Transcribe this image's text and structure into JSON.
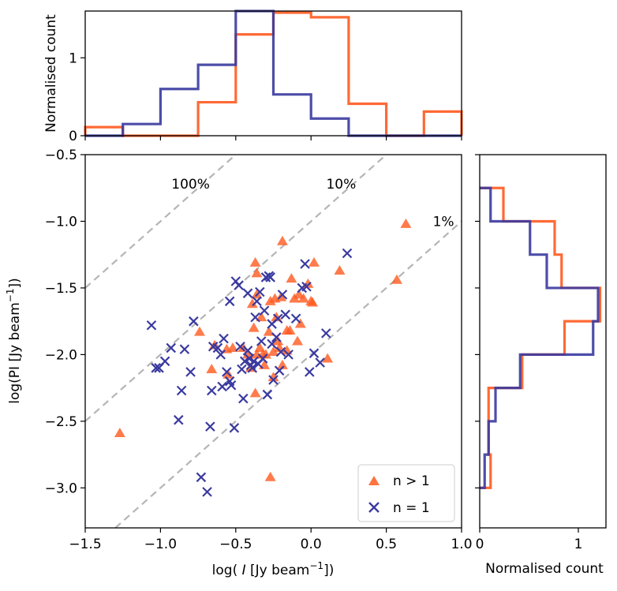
{
  "chart_data": {
    "type": "scatter",
    "colors": {
      "multi": "#FF5A1F",
      "single": "#3A3AA0",
      "ref_lines": "#b5b5b5"
    },
    "main": {
      "xlabel_prefix": "log( ",
      "xlabel_italic": "I",
      "xlabel_unit": " [Jy beam",
      "xlabel_sup": "−1",
      "xlabel_close": "])",
      "ylabel_prefix": "log(PI [Jy beam",
      "ylabel_sup": "−1",
      "ylabel_close": "])",
      "xlim": [
        -1.5,
        1.0
      ],
      "ylim": [
        -3.3,
        -0.5
      ],
      "xticks": [
        -1.5,
        -1.0,
        -0.5,
        0.0,
        0.5,
        1.0
      ],
      "xtick_labels": [
        "−1.5",
        "−1.0",
        "−0.5",
        "0.0",
        "0.5",
        "1.0"
      ],
      "yticks": [
        -3.0,
        -2.5,
        -2.0,
        -1.5,
        -1.0,
        -0.5
      ],
      "ytick_labels": [
        "−3.0",
        "−2.5",
        "−2.0",
        "−1.5",
        "−1.0",
        "−0.5"
      ],
      "ref_lines": [
        {
          "offset": 0,
          "label": "100%"
        },
        {
          "offset": -1,
          "label": "10%"
        },
        {
          "offset": -2,
          "label": "1%"
        }
      ],
      "series": [
        {
          "name": "n > 1",
          "marker": "triangle",
          "color": "#FF5A1F",
          "points": [
            [
              -1.27,
              -2.59
            ],
            [
              0.63,
              -1.02
            ],
            [
              0.57,
              -1.44
            ],
            [
              0.19,
              -1.37
            ],
            [
              0.11,
              -2.03
            ],
            [
              -0.19,
              -1.15
            ],
            [
              -0.27,
              -2.92
            ],
            [
              -0.37,
              -1.31
            ],
            [
              -0.36,
              -1.39
            ],
            [
              -0.36,
              -1.55
            ],
            [
              -0.37,
              -2.29
            ],
            [
              -0.33,
              -1.72
            ],
            [
              -0.27,
              -1.6
            ],
            [
              -0.24,
              -1.58
            ],
            [
              -0.23,
              -1.72
            ],
            [
              -0.22,
              -1.9
            ],
            [
              -0.21,
              -1.95
            ],
            [
              -0.2,
              -1.57
            ],
            [
              -0.19,
              -2.08
            ],
            [
              -0.16,
              -1.82
            ],
            [
              -0.14,
              -1.82
            ],
            [
              -0.13,
              -1.43
            ],
            [
              -0.11,
              -1.58
            ],
            [
              -0.08,
              -1.55
            ],
            [
              -0.05,
              -1.58
            ],
            [
              -0.02,
              -1.47
            ],
            [
              0.0,
              -1.6
            ],
            [
              0.01,
              -1.61
            ],
            [
              0.02,
              -1.31
            ],
            [
              -0.07,
              -1.77
            ],
            [
              -0.09,
              -1.9
            ],
            [
              -0.25,
              -1.98
            ],
            [
              -0.28,
              -1.83
            ],
            [
              -0.3,
              -2.0
            ],
            [
              -0.32,
              -2.0
            ],
            [
              -0.34,
              -1.95
            ],
            [
              -0.36,
              -2.0
            ],
            [
              -0.38,
              -1.8
            ],
            [
              -0.4,
              -2.1
            ],
            [
              -0.42,
              -2.0
            ],
            [
              -0.45,
              -1.95
            ],
            [
              -0.52,
              -1.95
            ],
            [
              -0.56,
              -1.96
            ],
            [
              -0.55,
              -2.15
            ],
            [
              -0.64,
              -1.93
            ],
            [
              -0.66,
              -2.11
            ],
            [
              -0.74,
              -1.83
            ],
            [
              -0.25,
              -2.17
            ],
            [
              -0.39,
              -1.62
            ],
            [
              -0.31,
              -2.08
            ],
            [
              -0.16,
              -1.97
            ]
          ]
        },
        {
          "name": "n = 1",
          "marker": "x",
          "color": "#3A3AA0",
          "points": [
            [
              -1.06,
              -1.78
            ],
            [
              -1.03,
              -2.1
            ],
            [
              -1.01,
              -2.1
            ],
            [
              -0.97,
              -2.05
            ],
            [
              -0.93,
              -1.95
            ],
            [
              -0.86,
              -2.27
            ],
            [
              -0.84,
              -1.96
            ],
            [
              -0.8,
              -2.13
            ],
            [
              -0.78,
              -1.75
            ],
            [
              -0.73,
              -2.92
            ],
            [
              -0.69,
              -3.03
            ],
            [
              -0.88,
              -2.49
            ],
            [
              -0.67,
              -2.54
            ],
            [
              -0.66,
              -2.27
            ],
            [
              -0.65,
              -1.94
            ],
            [
              -0.62,
              -1.95
            ],
            [
              -0.6,
              -2.0
            ],
            [
              -0.58,
              -1.88
            ],
            [
              -0.56,
              -2.13
            ],
            [
              -0.54,
              -1.6
            ],
            [
              -0.54,
              -2.2
            ],
            [
              -0.53,
              -2.23
            ],
            [
              -0.51,
              -2.55
            ],
            [
              -0.5,
              -1.45
            ],
            [
              -0.48,
              -1.48
            ],
            [
              -0.47,
              -1.94
            ],
            [
              -0.46,
              -2.11
            ],
            [
              -0.45,
              -2.33
            ],
            [
              -0.42,
              -1.97
            ],
            [
              -0.42,
              -1.54
            ],
            [
              -0.41,
              -2.03
            ],
            [
              -0.4,
              -2.08
            ],
            [
              -0.39,
              -2.1
            ],
            [
              -0.38,
              -2.05
            ],
            [
              -0.37,
              -1.72
            ],
            [
              -0.36,
              -1.6
            ],
            [
              -0.35,
              -2.07
            ],
            [
              -0.34,
              -1.53
            ],
            [
              -0.33,
              -1.9
            ],
            [
              -0.32,
              -2.03
            ],
            [
              -0.31,
              -1.67
            ],
            [
              -0.3,
              -1.42
            ],
            [
              -0.29,
              -2.3
            ],
            [
              -0.28,
              -1.41
            ],
            [
              -0.27,
              -1.42
            ],
            [
              -0.26,
              -1.77
            ],
            [
              -0.25,
              -2.19
            ],
            [
              -0.23,
              -1.87
            ],
            [
              -0.22,
              -1.73
            ],
            [
              -0.21,
              -2.12
            ],
            [
              -0.2,
              -1.98
            ],
            [
              -0.19,
              -1.55
            ],
            [
              -0.17,
              -1.7
            ],
            [
              -0.15,
              -2.0
            ],
            [
              -0.1,
              -1.73
            ],
            [
              -0.06,
              -1.5
            ],
            [
              -0.04,
              -1.32
            ],
            [
              -0.03,
              -1.49
            ],
            [
              -0.01,
              -2.13
            ],
            [
              0.02,
              -1.99
            ],
            [
              0.06,
              -2.06
            ],
            [
              0.1,
              -1.84
            ],
            [
              0.24,
              -1.24
            ],
            [
              -0.26,
              -1.92
            ],
            [
              -0.44,
              -2.05
            ],
            [
              -0.59,
              -2.24
            ]
          ]
        }
      ],
      "legend": [
        {
          "label": "n > 1",
          "marker": "triangle"
        },
        {
          "label": "n = 1",
          "marker": "x"
        }
      ],
      "legend_position": "lower-right"
    },
    "top_hist": {
      "ylabel": "Normalised count",
      "xlim": [
        -1.5,
        1.0
      ],
      "ylim": [
        0,
        1.6
      ],
      "yticks": [
        0,
        1
      ],
      "ytick_labels": [
        "0",
        "1"
      ],
      "bin_edges": [
        -1.5,
        -1.25,
        -1.0,
        -0.75,
        -0.5,
        -0.25,
        0.0,
        0.25,
        0.5,
        0.75,
        1.0
      ],
      "series": [
        {
          "name": "n > 1",
          "color": "#FF5A1F",
          "counts": [
            0.11,
            0.0,
            0.0,
            0.43,
            1.3,
            1.58,
            1.52,
            0.41,
            0.0,
            0.31
          ]
        },
        {
          "name": "n = 1",
          "color": "#3A3AA0",
          "counts": [
            0.0,
            0.15,
            0.6,
            0.91,
            1.6,
            0.53,
            0.22,
            0.0,
            0.0,
            0.0
          ]
        }
      ]
    },
    "right_hist": {
      "xlabel": "Normalised count",
      "xlim": [
        0,
        1.28
      ],
      "ylim": [
        -3.3,
        -0.5
      ],
      "xticks": [
        0,
        1
      ],
      "xtick_labels": [
        "0",
        "1"
      ],
      "bin_edges": [
        -3.0,
        -2.75,
        -2.5,
        -2.25,
        -2.0,
        -1.75,
        -1.5,
        -1.25,
        -1.0,
        -0.75
      ],
      "series": [
        {
          "name": "n > 1",
          "color": "#FF5A1F",
          "counts": [
            0.11,
            0.09,
            0.09,
            0.43,
            0.86,
            1.22,
            0.83,
            0.76,
            0.24
          ]
        },
        {
          "name": "n = 1",
          "color": "#3A3AA0",
          "counts": [
            0.05,
            0.09,
            0.16,
            0.41,
            1.15,
            1.2,
            0.68,
            0.51,
            0.11
          ]
        }
      ]
    }
  }
}
